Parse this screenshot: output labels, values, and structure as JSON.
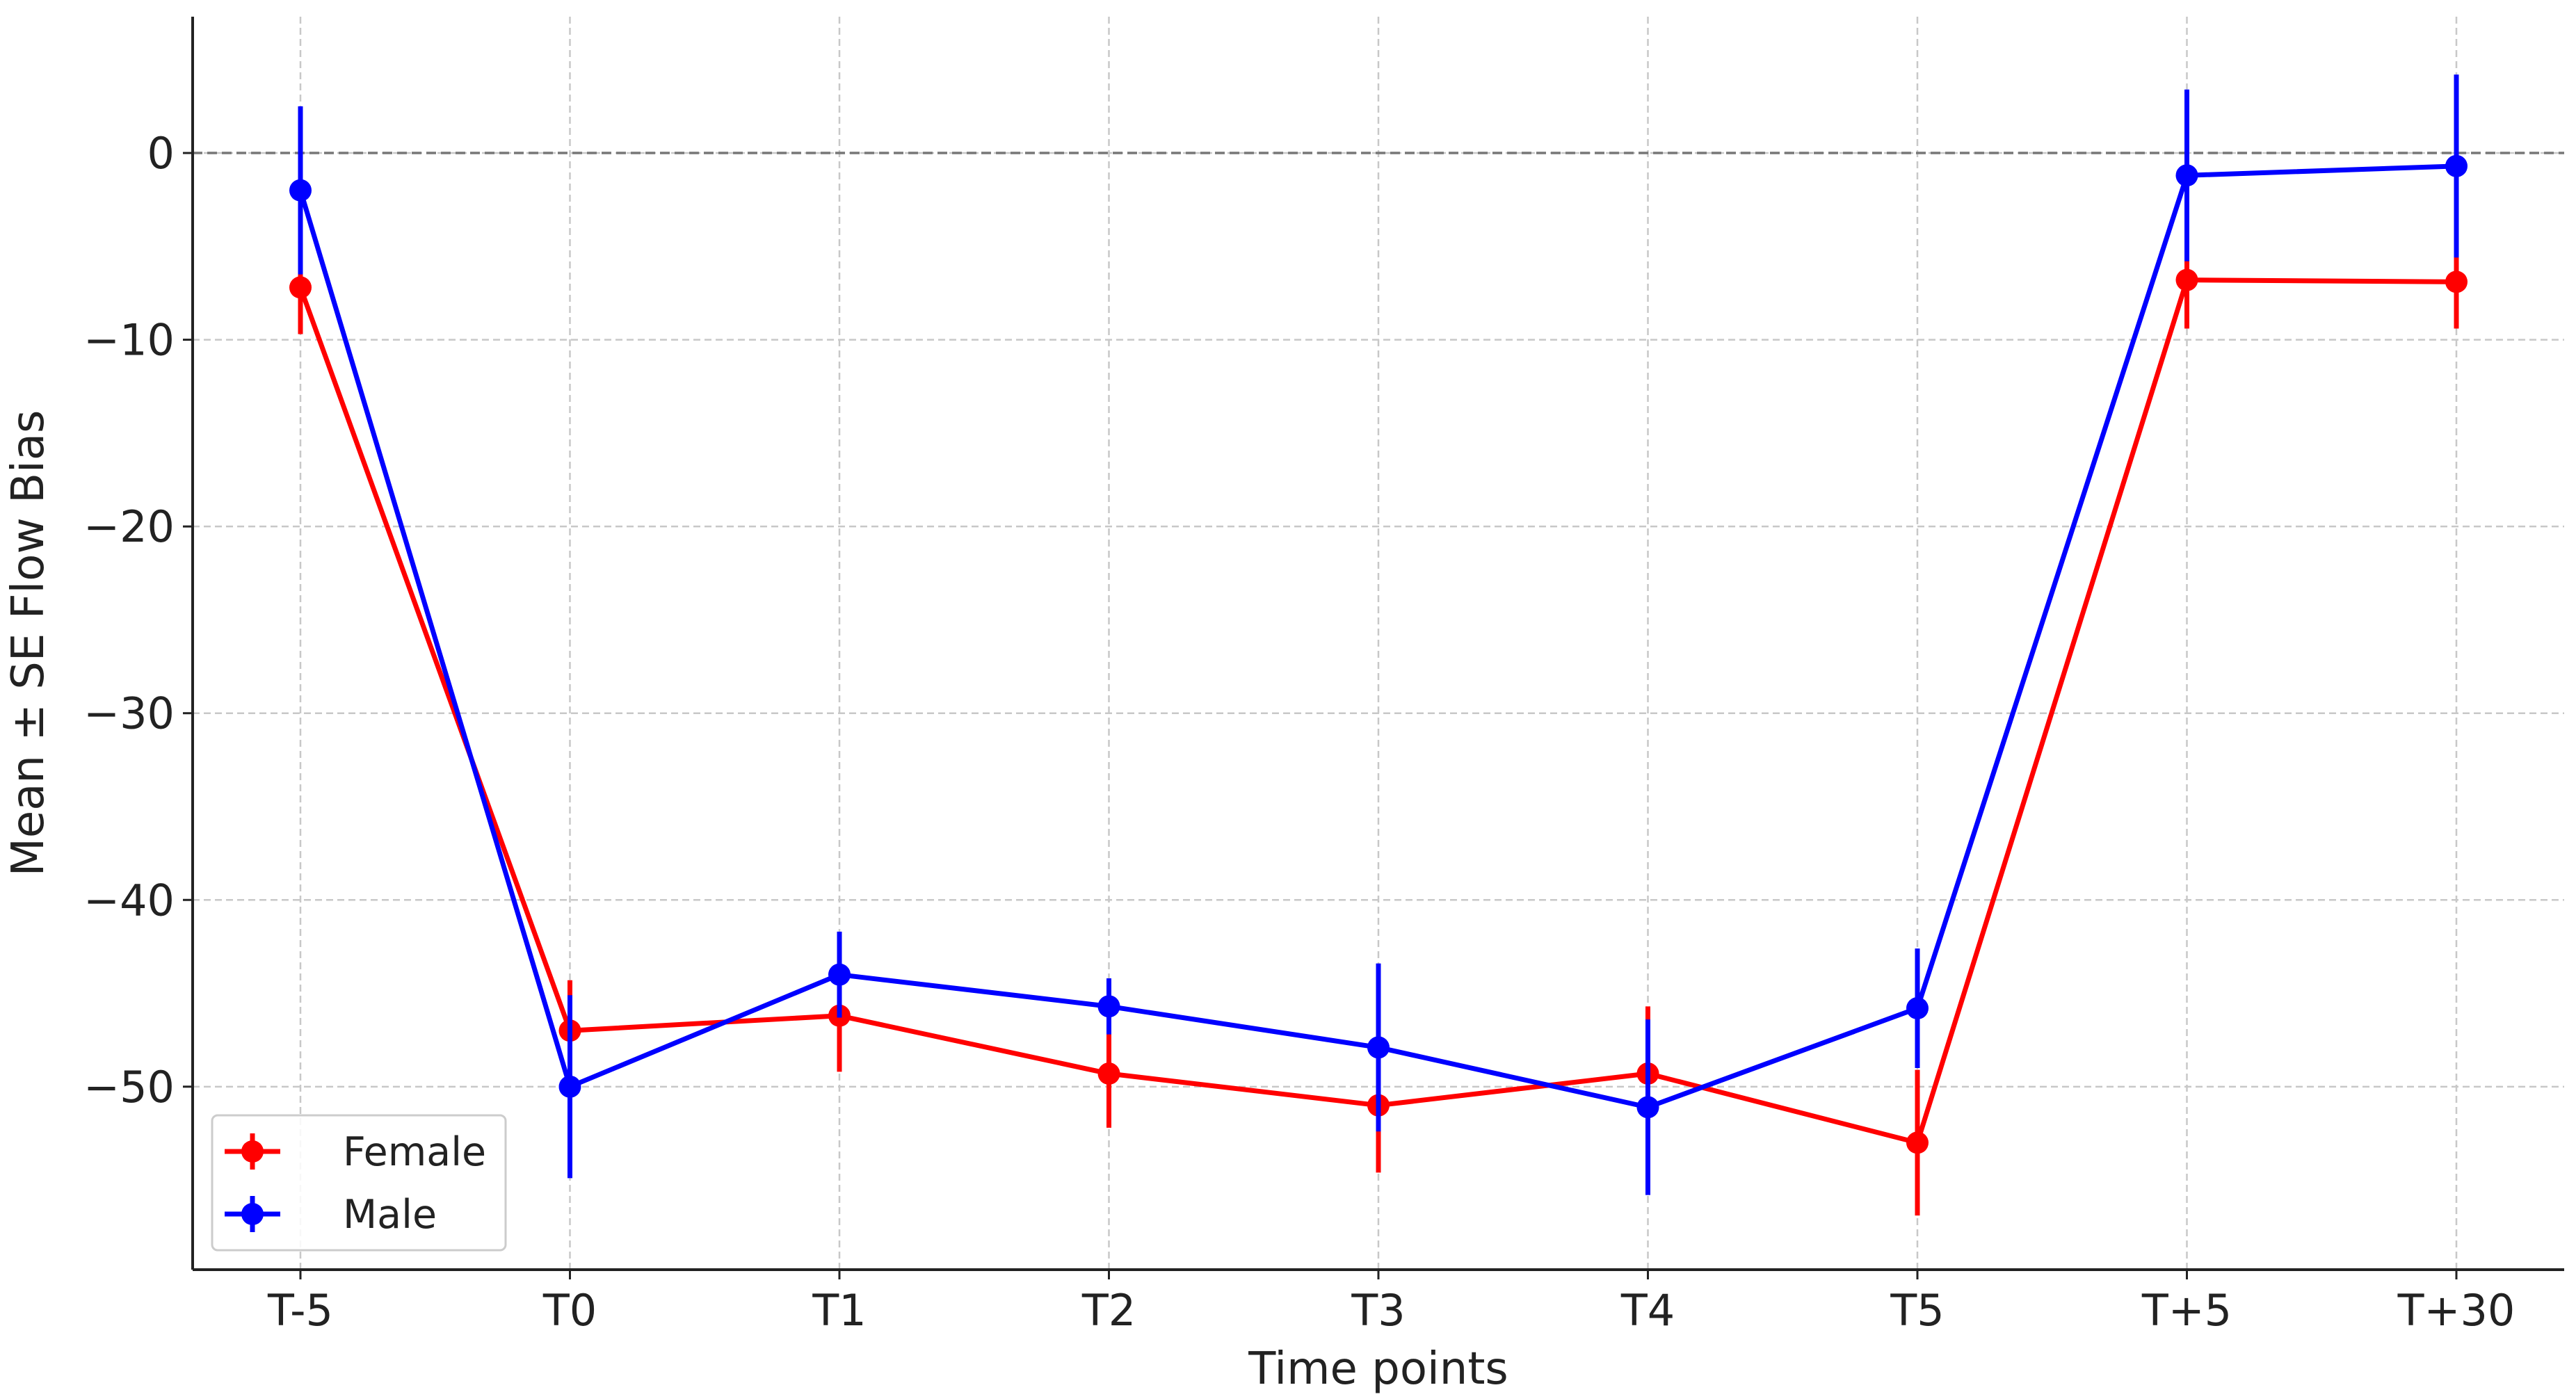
{
  "chart_data": {
    "type": "line",
    "xlabel": "Time points",
    "ylabel": "Mean ± SE Flow Bias",
    "categories": [
      "T-5",
      "T0",
      "T1",
      "T2",
      "T3",
      "T4",
      "T5",
      "T+5",
      "T+30"
    ],
    "series": [
      {
        "name": "Female",
        "color": "#ff0000",
        "values": [
          -7.2,
          -47.0,
          -46.2,
          -49.3,
          -51.0,
          -49.3,
          -53.0,
          -6.8,
          -6.9
        ],
        "errors": [
          2.5,
          2.7,
          3.0,
          2.9,
          3.6,
          3.6,
          3.9,
          2.6,
          2.5
        ]
      },
      {
        "name": "Male",
        "color": "#0000ff",
        "values": [
          -2.0,
          -50.0,
          -44.0,
          -45.7,
          -47.9,
          -51.1,
          -45.8,
          -1.2,
          -0.7
        ],
        "errors": [
          4.5,
          4.9,
          2.3,
          1.5,
          4.5,
          4.7,
          3.2,
          4.6,
          4.9
        ]
      }
    ],
    "ylim": [
      -59.8,
      7.3
    ],
    "yticks": [
      {
        "value": -50,
        "label": "−50"
      },
      {
        "value": -40,
        "label": "−40"
      },
      {
        "value": -30,
        "label": "−30"
      },
      {
        "value": -20,
        "label": "−20"
      },
      {
        "value": -10,
        "label": "−10"
      },
      0
    ],
    "reference_line": 0,
    "grid": true,
    "legend": "lower left"
  }
}
